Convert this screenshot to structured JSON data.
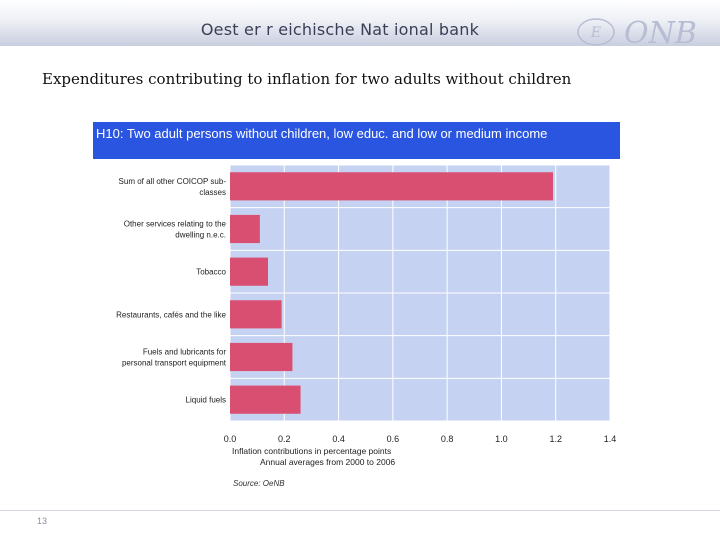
{
  "header": {
    "org_name": "Oest er r eichische Nat ional bank",
    "logo_text": "ONB",
    "logo_emblem": "E"
  },
  "slide_title": "Expenditures contributing to inflation for two adults without children",
  "chart_data": {
    "type": "bar",
    "orientation": "horizontal",
    "title": "H10: Two adult persons without children, low educ. and low or medium income",
    "categories": [
      "Sum of all other COICOP sub-classes",
      "Other services relating to the dwelling n.e.c.",
      "Tobacco",
      "Restaurants, cafés and the like",
      "Fuels and lubricants for personal transport equipment",
      "Liquid fuels"
    ],
    "category_label_lines": [
      [
        "Sum of all other COICOP sub-",
        "classes"
      ],
      [
        "Other services relating to the",
        "dwelling n.e.c."
      ],
      [
        "Tobacco"
      ],
      [
        "Restaurants, cafés and the like"
      ],
      [
        "Fuels and lubricants for",
        "personal transport equipment"
      ],
      [
        "Liquid fuels"
      ]
    ],
    "values": [
      1.19,
      0.11,
      0.14,
      0.19,
      0.23,
      0.26
    ],
    "xlim": [
      0,
      1.4
    ],
    "xticks": [
      "0.0",
      "0.2",
      "0.4",
      "0.6",
      "0.8",
      "1.0",
      "1.2",
      "1.4"
    ],
    "xlabel": "Inflation contributions in percentage points",
    "subtitle": "Annual averages from 2000 to 2006",
    "source": "Source: OeNB",
    "grid": true,
    "bar_color": "#d94f72",
    "plot_background": "#c6d2f2",
    "title_background": "#2a55e0"
  },
  "footer": {
    "page_number": "13"
  }
}
